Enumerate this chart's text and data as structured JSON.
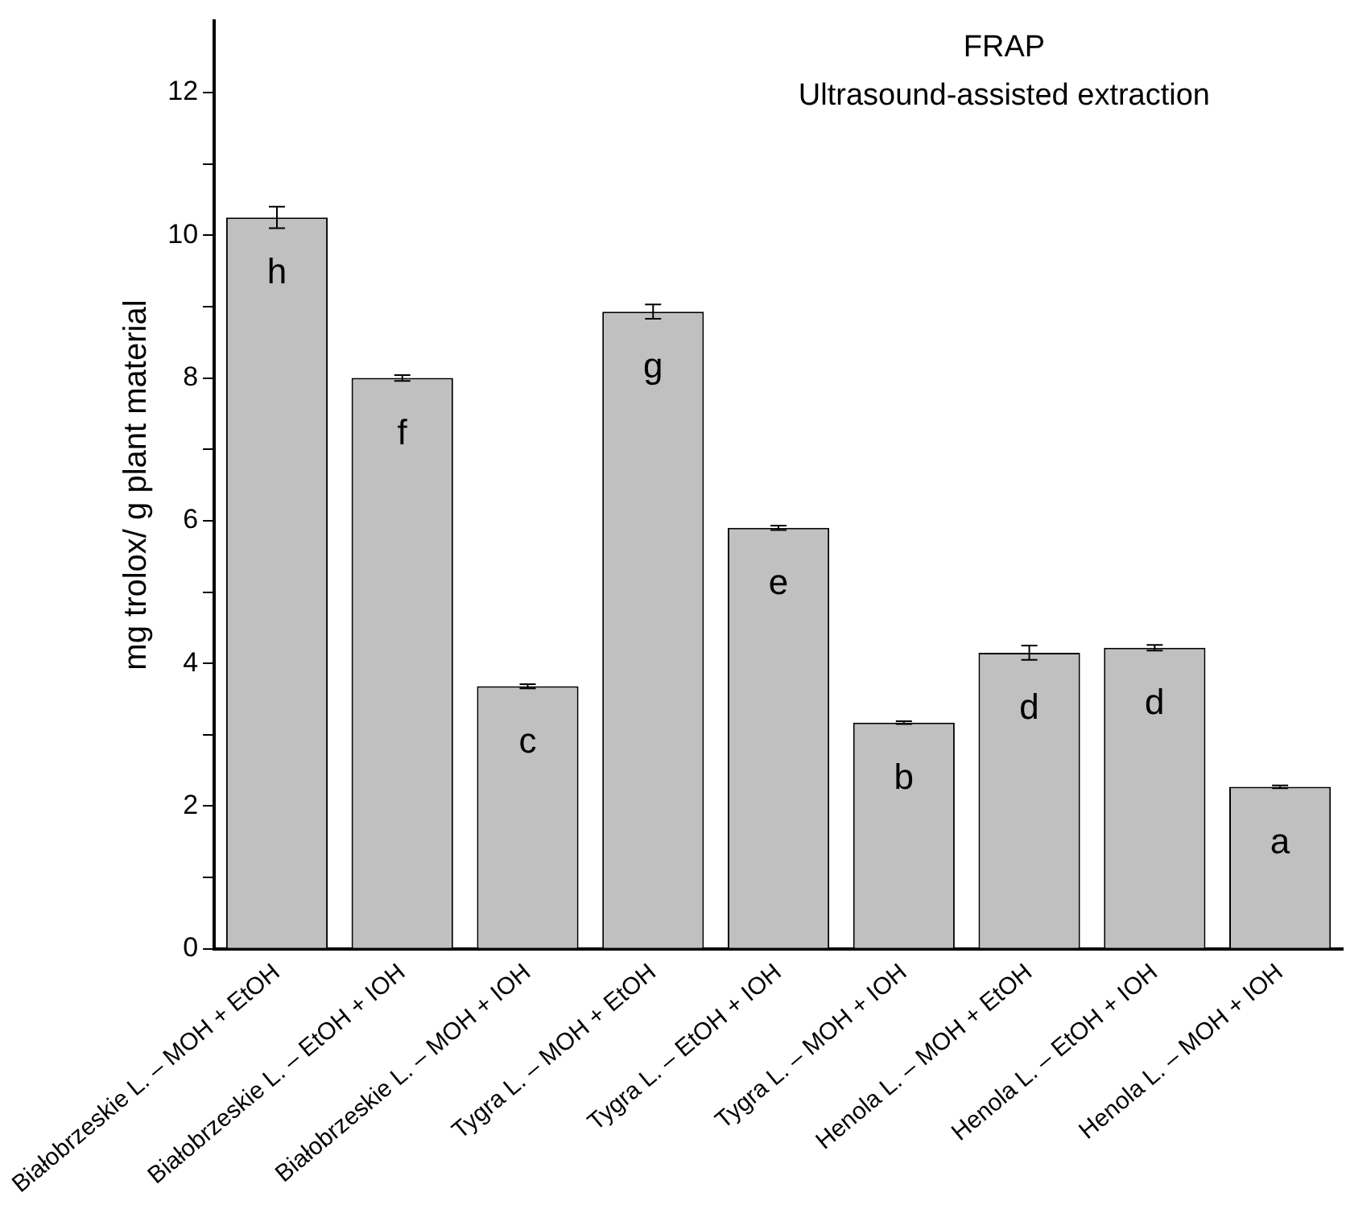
{
  "chart_data": {
    "type": "bar",
    "title": "FRAP",
    "subtitle": "Ultrasound-assisted extraction",
    "ylabel": "mg trolox/ g plant material",
    "categories": [
      "Białobrzeskie L. – MOH + EtOH",
      "Białobrzeskie L. – EtOH + IOH",
      "Białobrzeskie L. – MOH + IOH",
      "Tygra L. – MOH + EtOH",
      "Tygra L. – EtOH + IOH",
      "Tygra L. – MOH + IOH",
      "Henola L. – MOH + EtOH",
      "Henola L. – EtOH + IOH",
      "Henola L. – MOH + IOH"
    ],
    "values": [
      10.25,
      8.0,
      3.68,
      8.93,
      5.9,
      3.17,
      4.15,
      4.22,
      2.27
    ],
    "errors": [
      0.15,
      0.04,
      0.03,
      0.1,
      0.03,
      0.02,
      0.1,
      0.04,
      0.02
    ],
    "color": "#c0c0c0",
    "ylim": [
      0,
      13
    ],
    "yticks": [
      0,
      {
        "value": 1,
        "label": null
      },
      2,
      {
        "value": 3,
        "label": null
      },
      4,
      {
        "value": 5,
        "label": null
      },
      6,
      {
        "value": 7,
        "label": null
      },
      8,
      {
        "value": 9,
        "label": null
      },
      10,
      {
        "value": 11,
        "label": null
      },
      12
    ],
    "annotations": [
      {
        "text": "h",
        "x": "Białobrzeskie L. – MOH + EtOH",
        "y": 10.25
      },
      {
        "text": "f",
        "x": "Białobrzeskie L. – EtOH + IOH",
        "y": 8.0
      },
      {
        "text": "c",
        "x": "Białobrzeskie L. – MOH + IOH",
        "y": 3.68
      },
      {
        "text": "g",
        "x": "Tygra L. – MOH + EtOH",
        "y": 8.93
      },
      {
        "text": "e",
        "x": "Tygra L. – EtOH + IOH",
        "y": 5.9
      },
      {
        "text": "b",
        "x": "Tygra L. – MOH + IOH",
        "y": 3.17
      },
      {
        "text": "d",
        "x": "Henola L. – MOH + EtOH",
        "y": 4.15
      },
      {
        "text": "d",
        "x": "Henola L. – EtOH + IOH",
        "y": 4.22
      },
      {
        "text": "a",
        "x": "Henola L. – MOH + IOH",
        "y": 2.27
      }
    ],
    "grid": false,
    "legend": false
  }
}
